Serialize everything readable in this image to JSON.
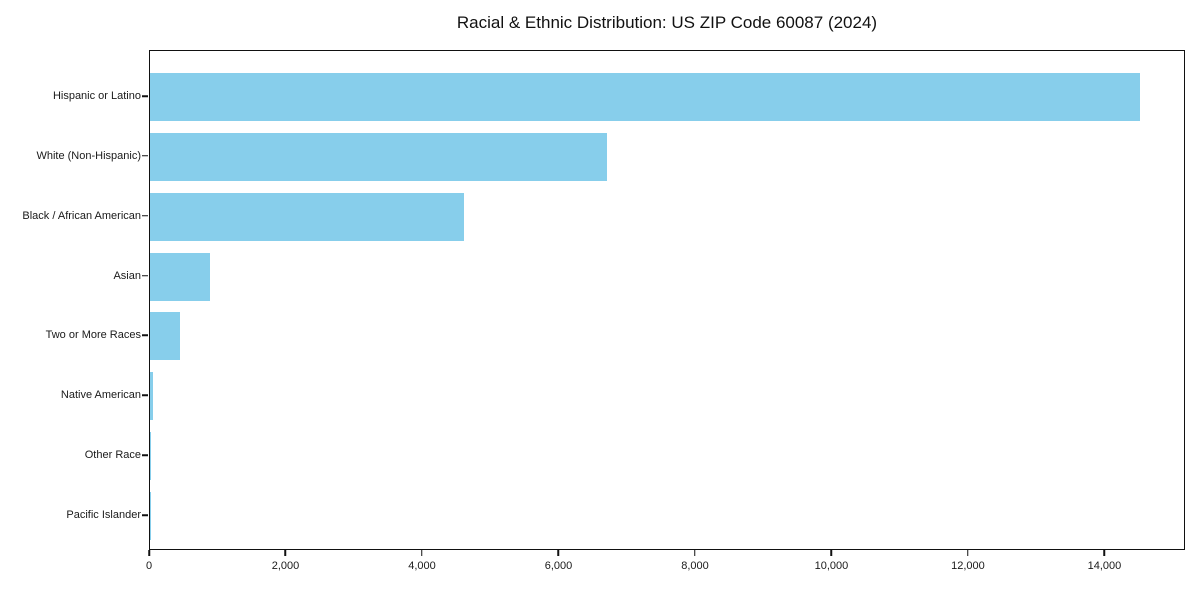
{
  "chart_data": {
    "type": "bar",
    "orientation": "horizontal",
    "title": "Racial & Ethnic Distribution: US ZIP Code 60087 (2024)",
    "categories": [
      "Hispanic or Latino",
      "White (Non-Hispanic)",
      "Black / African American",
      "Asian",
      "Two or More Races",
      "Native American",
      "Other Race",
      "Pacific Islander"
    ],
    "values": [
      14500,
      6700,
      4600,
      880,
      440,
      45,
      10,
      5
    ],
    "xlabel": "",
    "ylabel": "",
    "xlim": [
      0,
      15180
    ],
    "x_ticks": [
      0,
      2000,
      4000,
      6000,
      8000,
      10000,
      12000,
      14000
    ],
    "x_tick_labels": [
      "0",
      "2,000",
      "4,000",
      "6,000",
      "8,000",
      "10,000",
      "12,000",
      "14,000"
    ],
    "bar_color": "#87CEEB",
    "axis_color": "#111111",
    "grid": false,
    "legend": "none"
  }
}
